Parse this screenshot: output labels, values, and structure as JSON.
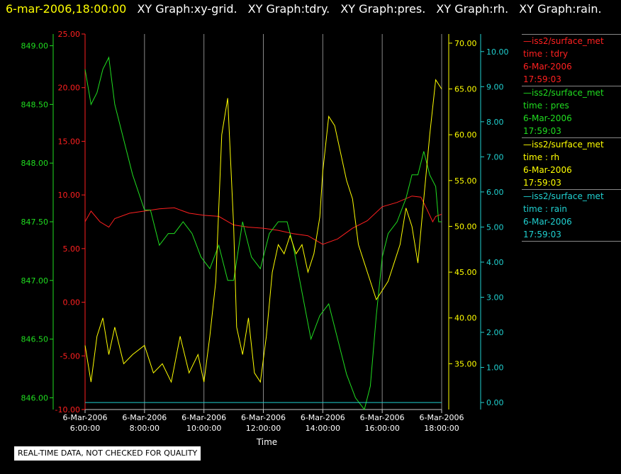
{
  "header": {
    "timestamp": "6-mar-2006,18:00:00",
    "graph_titles": [
      "XY Graph:xy-grid.",
      "XY Graph:tdry.",
      "XY Graph:pres.",
      "XY Graph:rh.",
      "XY Graph:rain."
    ]
  },
  "note": "REAL-TIME DATA, NOT CHECKED FOR QUALITY",
  "legend": [
    {
      "lines": [
        "—iss2/surface_met",
        "time : tdry",
        "6-Mar-2006",
        "17:59:03"
      ],
      "color": "#ff2020"
    },
    {
      "lines": [
        "—iss2/surface_met",
        "time : pres",
        "6-Mar-2006",
        "17:59:03"
      ],
      "color": "#20dd20"
    },
    {
      "lines": [
        "—iss2/surface_met",
        "time : rh",
        "6-Mar-2006",
        "17:59:03"
      ],
      "color": "#ffff00"
    },
    {
      "lines": [
        "—iss2/surface_met",
        "time : rain",
        "6-Mar-2006",
        "17:59:03"
      ],
      "color": "#20d0d0"
    }
  ],
  "chart_data": {
    "type": "line",
    "xlabel": "Time",
    "x_ticks": [
      {
        "hours": 6,
        "date": "6-Mar-2006",
        "time": "6:00:00"
      },
      {
        "hours": 8,
        "date": "6-Mar-2006",
        "time": "8:00:00"
      },
      {
        "hours": 10,
        "date": "6-Mar-2006",
        "time": "10:00:00"
      },
      {
        "hours": 12,
        "date": "6-Mar-2006",
        "time": "12:00:00"
      },
      {
        "hours": 14,
        "date": "6-Mar-2006",
        "time": "14:00:00"
      },
      {
        "hours": 16,
        "date": "6-Mar-2006",
        "time": "16:00:00"
      },
      {
        "hours": 18,
        "date": "6-Mar-2006",
        "time": "18:00:00"
      }
    ],
    "xlim": [
      6,
      18
    ],
    "grid": "vertical",
    "axes": {
      "pres": {
        "color": "#20dd20",
        "min": 845.9,
        "max": 849.1,
        "ticks": [
          "846.00",
          "846.50",
          "847.00",
          "847.50",
          "848.00",
          "848.50",
          "849.00"
        ]
      },
      "tdry": {
        "color": "#ff2020",
        "min": -10,
        "max": 25,
        "ticks": [
          "-10.00",
          "-5.00",
          "0.00",
          "5.00",
          "10.00",
          "15.00",
          "20.00",
          "25.00"
        ]
      },
      "rh": {
        "color": "#ffff00",
        "min": 30,
        "max": 71,
        "ticks": [
          "35.00",
          "40.00",
          "45.00",
          "50.00",
          "55.00",
          "60.00",
          "65.00",
          "70.00"
        ]
      },
      "rain": {
        "color": "#20d0d0",
        "min": -0.2,
        "max": 10.5,
        "ticks": [
          "0.00",
          "1.00",
          "2.00",
          "3.00",
          "4.00",
          "5.00",
          "6.00",
          "7.00",
          "8.00",
          "9.00",
          "10.00"
        ]
      }
    },
    "series": [
      {
        "name": "tdry",
        "axis": "tdry",
        "color": "#ff2020",
        "x": [
          6.0,
          6.2,
          6.5,
          6.8,
          7.0,
          7.5,
          8.0,
          8.5,
          9.0,
          9.5,
          10.0,
          10.5,
          11.0,
          11.5,
          12.0,
          12.5,
          13.0,
          13.5,
          14.0,
          14.5,
          15.0,
          15.5,
          16.0,
          16.5,
          17.0,
          17.3,
          17.5,
          17.7,
          17.8,
          18.0
        ],
        "y": [
          7.5,
          8.5,
          7.5,
          7.0,
          7.8,
          8.3,
          8.5,
          8.7,
          8.8,
          8.3,
          8.1,
          8.0,
          7.2,
          7.0,
          6.9,
          6.7,
          6.4,
          6.2,
          5.4,
          5.9,
          6.9,
          7.6,
          8.9,
          9.3,
          9.9,
          9.8,
          8.7,
          7.5,
          8.0,
          8.2
        ]
      },
      {
        "name": "pres",
        "axis": "pres",
        "color": "#20dd20",
        "x": [
          6.0,
          6.2,
          6.4,
          6.6,
          6.8,
          7.0,
          7.3,
          7.6,
          8.0,
          8.2,
          8.5,
          8.8,
          9.0,
          9.3,
          9.6,
          9.9,
          10.2,
          10.5,
          10.8,
          11.0,
          11.3,
          11.6,
          11.9,
          12.2,
          12.5,
          12.8,
          13.0,
          13.3,
          13.6,
          13.9,
          14.2,
          14.5,
          14.8,
          15.1,
          15.4,
          15.6,
          15.8,
          16.0,
          16.2,
          16.5,
          16.8,
          17.0,
          17.2,
          17.4,
          17.6,
          17.8,
          17.9,
          18.0
        ],
        "y": [
          848.8,
          848.5,
          848.6,
          848.8,
          848.9,
          848.5,
          848.2,
          847.9,
          847.6,
          847.6,
          847.3,
          847.4,
          847.4,
          847.5,
          847.4,
          847.2,
          847.1,
          847.3,
          847.0,
          847.0,
          847.5,
          847.2,
          847.1,
          847.4,
          847.5,
          847.5,
          847.3,
          846.9,
          846.5,
          846.7,
          846.8,
          846.5,
          846.2,
          846.0,
          845.9,
          846.1,
          846.7,
          847.2,
          847.4,
          847.5,
          847.7,
          847.9,
          847.9,
          848.1,
          847.9,
          847.8,
          847.5,
          847.5
        ]
      },
      {
        "name": "rh",
        "axis": "rh",
        "color": "#ffff00",
        "x": [
          6.0,
          6.2,
          6.4,
          6.6,
          6.8,
          7.0,
          7.3,
          7.6,
          8.0,
          8.3,
          8.6,
          8.9,
          9.2,
          9.5,
          9.8,
          10.0,
          10.2,
          10.4,
          10.6,
          10.8,
          11.0,
          11.1,
          11.3,
          11.5,
          11.7,
          11.9,
          12.1,
          12.3,
          12.5,
          12.7,
          12.9,
          13.1,
          13.3,
          13.5,
          13.7,
          13.9,
          14.0,
          14.2,
          14.4,
          14.6,
          14.8,
          15.0,
          15.2,
          15.4,
          15.6,
          15.8,
          16.0,
          16.2,
          16.4,
          16.6,
          16.8,
          17.0,
          17.2,
          17.4,
          17.6,
          17.8,
          18.0
        ],
        "y": [
          37,
          33,
          38,
          40,
          36,
          39,
          35,
          36,
          37,
          34,
          35,
          33,
          38,
          34,
          36,
          33,
          38,
          44,
          60,
          64,
          50,
          39,
          36,
          40,
          34,
          33,
          38,
          45,
          48,
          47,
          49,
          47,
          48,
          45,
          47,
          51,
          56,
          62,
          61,
          58,
          55,
          53,
          48,
          46,
          44,
          42,
          43,
          44,
          46,
          48,
          52,
          50,
          46,
          53,
          60,
          66,
          65
        ]
      },
      {
        "name": "rain",
        "axis": "rain",
        "color": "#20d0d0",
        "x": [
          6.0,
          18.0
        ],
        "y": [
          0.0,
          0.0
        ]
      }
    ]
  }
}
